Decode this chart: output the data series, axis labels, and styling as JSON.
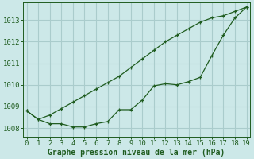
{
  "background_color": "#cce8e8",
  "grid_color": "#aacccc",
  "line_color": "#1f5c1f",
  "xlabel": "Graphe pression niveau de la mer (hPa)",
  "x": [
    0,
    1,
    2,
    3,
    4,
    5,
    6,
    7,
    8,
    9,
    10,
    11,
    12,
    13,
    14,
    15,
    16,
    17,
    18,
    19
  ],
  "series1_upper": [
    1008.8,
    1008.4,
    1008.6,
    1008.9,
    1009.2,
    1009.5,
    1009.8,
    1010.1,
    1010.4,
    1010.8,
    1011.2,
    1011.6,
    1012.0,
    1012.3,
    1012.6,
    1012.9,
    1013.1,
    1013.2,
    1013.4,
    1013.6
  ],
  "series2_lower": [
    1008.8,
    1008.4,
    1008.2,
    1008.2,
    1008.05,
    1008.05,
    1008.2,
    1008.3,
    1008.85,
    1008.85,
    1009.3,
    1009.95,
    1010.05,
    1010.0,
    1010.15,
    1010.35,
    1011.35,
    1012.3,
    1013.1,
    1013.6
  ],
  "ylim": [
    1007.6,
    1013.8
  ],
  "yticks": [
    1008,
    1009,
    1010,
    1011,
    1012,
    1013
  ],
  "xticks": [
    0,
    1,
    2,
    3,
    4,
    5,
    6,
    7,
    8,
    9,
    10,
    11,
    12,
    13,
    14,
    15,
    16,
    17,
    18,
    19
  ],
  "xlabel_fontsize": 7,
  "tick_fontsize": 6.5
}
